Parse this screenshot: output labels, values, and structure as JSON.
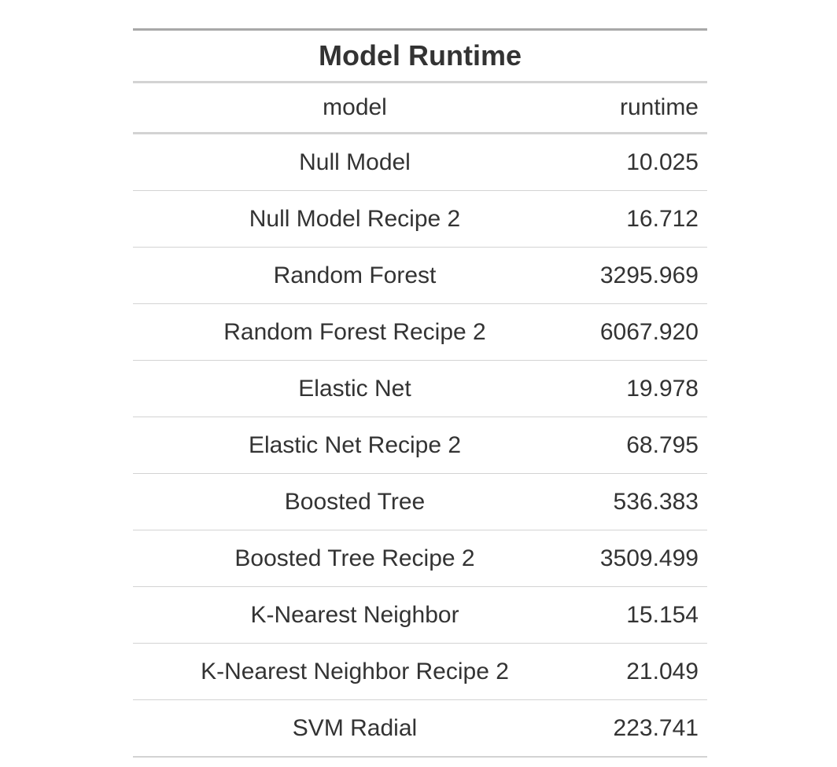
{
  "chart_data": {
    "type": "table",
    "title": "Model Runtime",
    "columns": [
      "model",
      "runtime"
    ],
    "rows": [
      {
        "model": "Null Model",
        "runtime": "10.025"
      },
      {
        "model": "Null Model Recipe 2",
        "runtime": "16.712"
      },
      {
        "model": "Random Forest",
        "runtime": "3295.969"
      },
      {
        "model": "Random Forest Recipe 2",
        "runtime": "6067.920"
      },
      {
        "model": "Elastic Net",
        "runtime": "19.978"
      },
      {
        "model": "Elastic Net Recipe 2",
        "runtime": "68.795"
      },
      {
        "model": "Boosted Tree",
        "runtime": "536.383"
      },
      {
        "model": "Boosted Tree Recipe 2",
        "runtime": "3509.499"
      },
      {
        "model": "K-Nearest Neighbor",
        "runtime": "15.154"
      },
      {
        "model": "K-Nearest Neighbor Recipe 2",
        "runtime": "21.049"
      },
      {
        "model": "SVM Radial",
        "runtime": "223.741"
      }
    ]
  }
}
